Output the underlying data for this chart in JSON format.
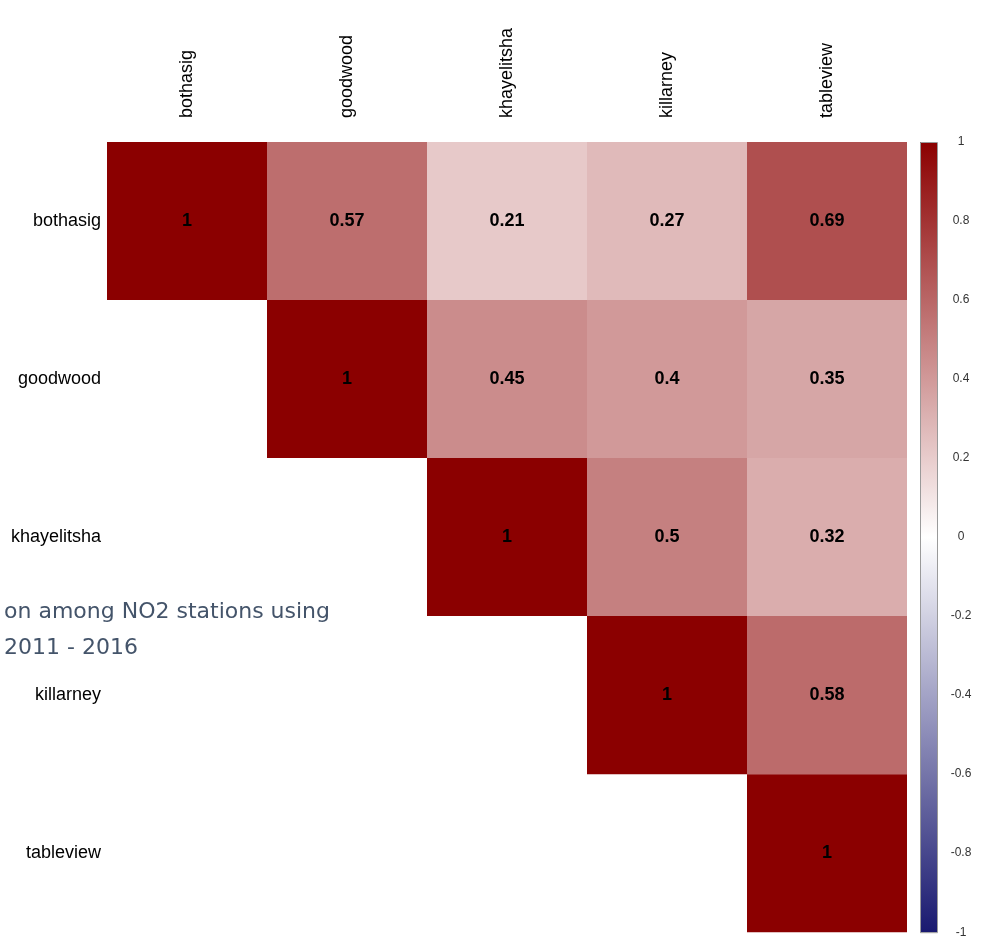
{
  "chart_data": {
    "type": "heatmap",
    "categories": [
      "bothasig",
      "goodwood",
      "khayelitsha",
      "killarney",
      "tableview"
    ],
    "y_categories": [
      "bothasig",
      "goodwood",
      "khayelitsha",
      "killarney",
      "tableview"
    ],
    "cells": [
      [
        1,
        0.57,
        0.21,
        0.27,
        0.69
      ],
      [
        null,
        1,
        0.45,
        0.4,
        0.35
      ],
      [
        null,
        null,
        1,
        0.5,
        0.32
      ],
      [
        null,
        null,
        null,
        1,
        0.58
      ],
      [
        null,
        null,
        null,
        null,
        1
      ]
    ],
    "data_labels": true,
    "clim": [
      -1,
      1
    ],
    "cticks": [
      -1,
      -0.8,
      -0.6,
      -0.4,
      -0.2,
      0,
      0.2,
      0.4,
      0.6,
      0.8,
      1
    ],
    "annotations": [
      "on among NO2 stations using",
      "2011 - 2016"
    ]
  }
}
